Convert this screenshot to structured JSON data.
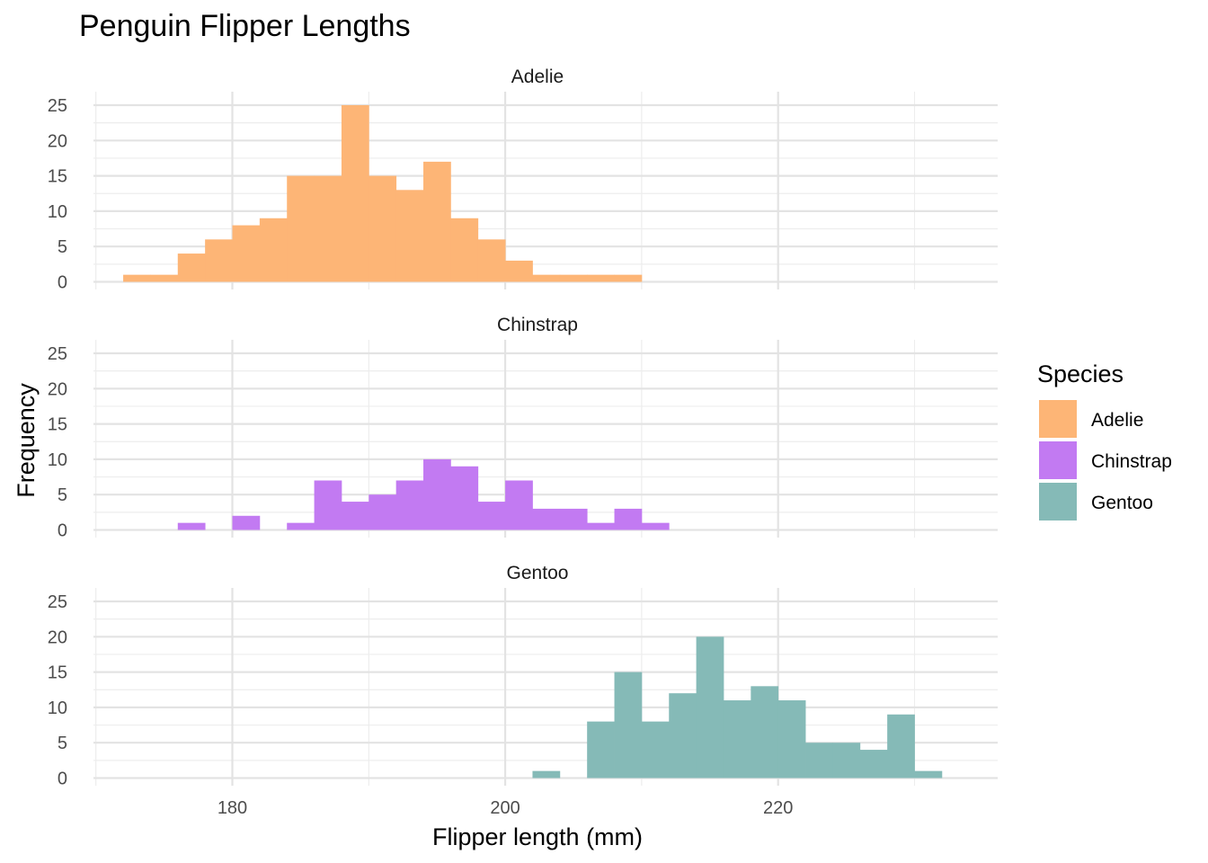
{
  "chart_data": {
    "type": "bar",
    "subtype": "faceted-histogram",
    "title": "Penguin Flipper Lengths",
    "xlabel": "Flipper length (mm)",
    "ylabel": "Frequency",
    "x_ticks": [
      180,
      200,
      220
    ],
    "y_ticks": [
      0,
      5,
      10,
      15,
      20,
      25
    ],
    "xlim": [
      170,
      235
    ],
    "ylim": [
      0,
      26
    ],
    "bin_width": 2,
    "grid": true,
    "legend": {
      "title": "Species",
      "placement": "right",
      "items": [
        {
          "label": "Adelie",
          "color": "#FDB576"
        },
        {
          "label": "Chinstrap",
          "color": "#C27AF2"
        },
        {
          "label": "Gentoo",
          "color": "#85BAB7"
        }
      ]
    },
    "facets": [
      {
        "name": "Adelie",
        "color": "#FDB576",
        "bins": [
          {
            "x0": 172,
            "x1": 174,
            "count": 1
          },
          {
            "x0": 174,
            "x1": 176,
            "count": 1
          },
          {
            "x0": 176,
            "x1": 178,
            "count": 4
          },
          {
            "x0": 178,
            "x1": 180,
            "count": 6
          },
          {
            "x0": 180,
            "x1": 182,
            "count": 8
          },
          {
            "x0": 182,
            "x1": 184,
            "count": 9
          },
          {
            "x0": 184,
            "x1": 186,
            "count": 15
          },
          {
            "x0": 186,
            "x1": 188,
            "count": 15
          },
          {
            "x0": 188,
            "x1": 190,
            "count": 25
          },
          {
            "x0": 190,
            "x1": 192,
            "count": 15
          },
          {
            "x0": 192,
            "x1": 194,
            "count": 13
          },
          {
            "x0": 194,
            "x1": 196,
            "count": 17
          },
          {
            "x0": 196,
            "x1": 198,
            "count": 9
          },
          {
            "x0": 198,
            "x1": 200,
            "count": 6
          },
          {
            "x0": 200,
            "x1": 202,
            "count": 3
          },
          {
            "x0": 202,
            "x1": 204,
            "count": 1
          },
          {
            "x0": 204,
            "x1": 206,
            "count": 1
          },
          {
            "x0": 206,
            "x1": 208,
            "count": 1
          },
          {
            "x0": 208,
            "x1": 210,
            "count": 1
          }
        ]
      },
      {
        "name": "Chinstrap",
        "color": "#C27AF2",
        "bins": [
          {
            "x0": 176,
            "x1": 178,
            "count": 1
          },
          {
            "x0": 180,
            "x1": 182,
            "count": 2
          },
          {
            "x0": 184,
            "x1": 186,
            "count": 1
          },
          {
            "x0": 186,
            "x1": 188,
            "count": 7
          },
          {
            "x0": 188,
            "x1": 190,
            "count": 4
          },
          {
            "x0": 190,
            "x1": 192,
            "count": 5
          },
          {
            "x0": 192,
            "x1": 194,
            "count": 7
          },
          {
            "x0": 194,
            "x1": 196,
            "count": 10
          },
          {
            "x0": 196,
            "x1": 198,
            "count": 9
          },
          {
            "x0": 198,
            "x1": 200,
            "count": 4
          },
          {
            "x0": 200,
            "x1": 202,
            "count": 7
          },
          {
            "x0": 202,
            "x1": 204,
            "count": 3
          },
          {
            "x0": 204,
            "x1": 206,
            "count": 3
          },
          {
            "x0": 206,
            "x1": 208,
            "count": 1
          },
          {
            "x0": 208,
            "x1": 210,
            "count": 3
          },
          {
            "x0": 210,
            "x1": 212,
            "count": 1
          }
        ]
      },
      {
        "name": "Gentoo",
        "color": "#85BAB7",
        "bins": [
          {
            "x0": 202,
            "x1": 204,
            "count": 1
          },
          {
            "x0": 206,
            "x1": 208,
            "count": 8
          },
          {
            "x0": 208,
            "x1": 210,
            "count": 15
          },
          {
            "x0": 210,
            "x1": 212,
            "count": 8
          },
          {
            "x0": 212,
            "x1": 214,
            "count": 12
          },
          {
            "x0": 214,
            "x1": 216,
            "count": 20
          },
          {
            "x0": 216,
            "x1": 218,
            "count": 11
          },
          {
            "x0": 218,
            "x1": 220,
            "count": 13
          },
          {
            "x0": 220,
            "x1": 222,
            "count": 11
          },
          {
            "x0": 222,
            "x1": 224,
            "count": 5
          },
          {
            "x0": 224,
            "x1": 226,
            "count": 5
          },
          {
            "x0": 226,
            "x1": 228,
            "count": 4
          },
          {
            "x0": 228,
            "x1": 230,
            "count": 9
          },
          {
            "x0": 230,
            "x1": 232,
            "count": 1
          }
        ]
      }
    ]
  }
}
